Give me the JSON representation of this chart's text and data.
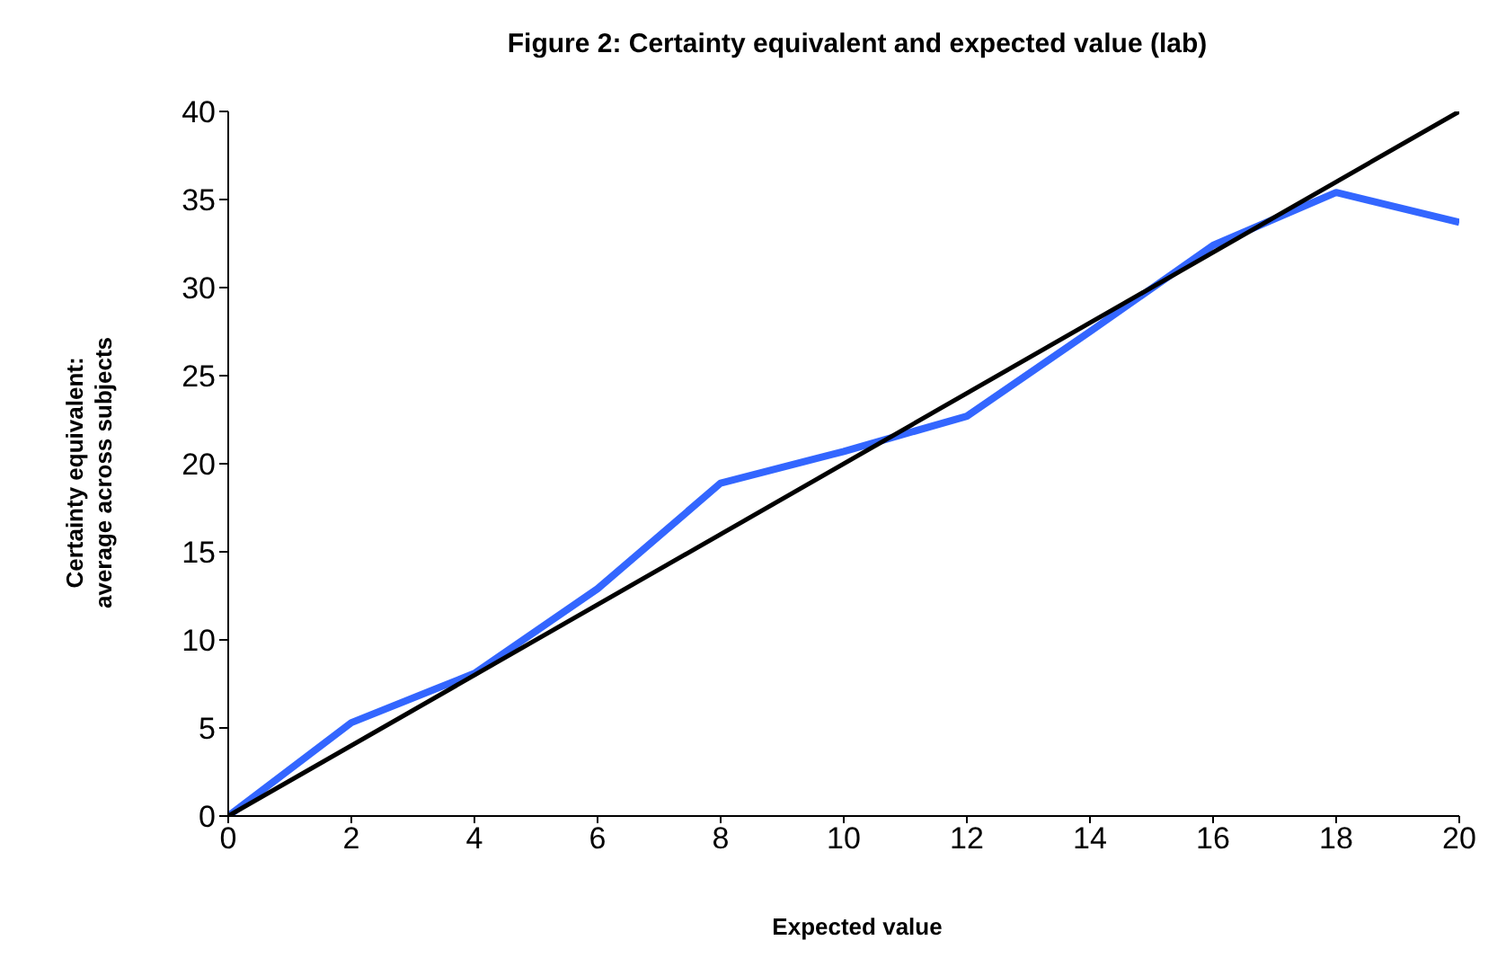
{
  "chart_data": {
    "type": "line",
    "title": "Figure 2: Certainty equivalent and expected value (lab)",
    "xlabel": "Expected value",
    "ylabel": "Certainty equivalent: average across subjects",
    "series": [
      {
        "color": "#3366ff",
        "x": [
          0,
          2,
          4,
          6,
          8,
          10,
          12,
          14,
          16,
          18,
          20
        ],
        "values": [
          0,
          5.3,
          8.1,
          12.9,
          18.9,
          20.7,
          22.7,
          27.5,
          32.4,
          35.4,
          33.7
        ]
      },
      {
        "color": "#000000",
        "x": [
          0,
          20
        ],
        "values": [
          0,
          40
        ]
      }
    ],
    "xlim": [
      0,
      20
    ],
    "xticks": [
      0,
      2,
      4,
      6,
      8,
      10,
      12,
      14,
      16,
      18,
      20
    ],
    "ylim": [
      0,
      40
    ],
    "yticks": [
      0,
      5,
      10,
      15,
      20,
      25,
      30,
      35,
      40
    ],
    "grid": false,
    "marker": "none",
    "line_style": "solid"
  }
}
